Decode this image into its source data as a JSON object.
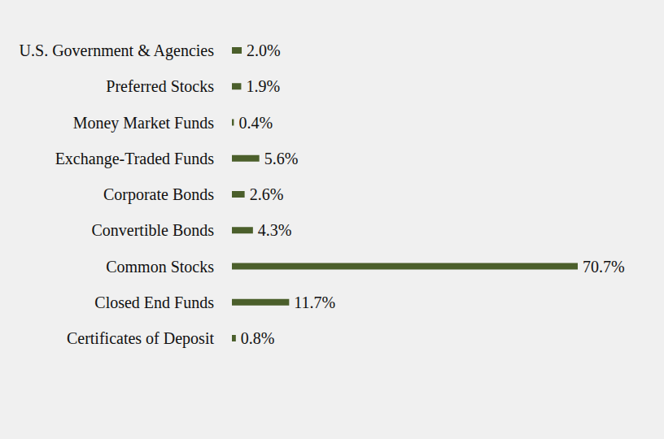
{
  "chart_data": {
    "type": "bar",
    "orientation": "horizontal",
    "categories": [
      "U.S. Government & Agencies",
      "Preferred Stocks",
      "Money Market Funds",
      "Exchange-Traded Funds",
      "Corporate Bonds",
      "Convertible Bonds",
      "Common Stocks",
      "Closed End Funds",
      "Certificates of Deposit"
    ],
    "values": [
      2.0,
      1.9,
      0.4,
      5.6,
      2.6,
      4.3,
      70.7,
      11.7,
      0.8
    ],
    "value_labels": [
      "2.0%",
      "1.9%",
      "0.4%",
      "5.6%",
      "2.6%",
      "4.3%",
      "70.7%",
      "11.7%",
      "0.8%"
    ],
    "color": "#4b5f2b",
    "xlim": [
      0,
      70.7
    ],
    "data_labels": true,
    "tick_labels": false,
    "grid": false
  }
}
